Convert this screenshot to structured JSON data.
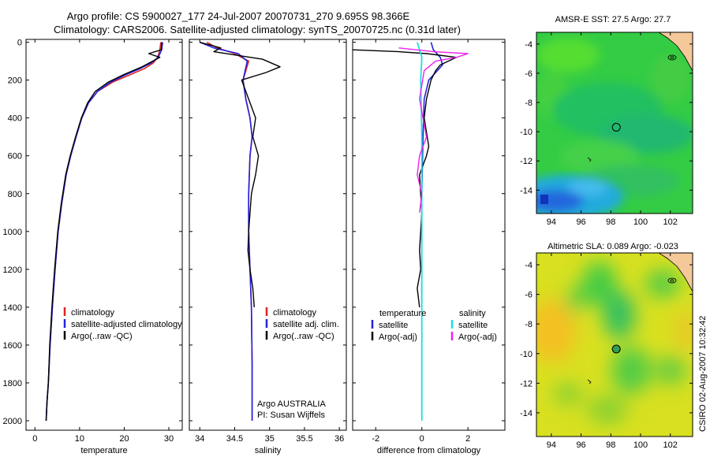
{
  "header": {
    "line1": "Argo profile: CS 5900027_177 24-Jul-2007 20070731_270 9.695S 98.366E",
    "line2": "Climatology: CARS2006. Satellite-adjusted climatology: synTS_20070725.nc (0.31d later)"
  },
  "stamp": "CSIRO 02-Aug-2007 10:32:42",
  "colors": {
    "climatology": "#dd2222",
    "satellite": "#2222dd",
    "argo": "#000000",
    "sat_salinity": "#22dddd",
    "argo_salinity": "#ee22ee"
  },
  "chart_data": [
    {
      "type": "line",
      "id": "temperature",
      "title": "",
      "xlabel": "temperature",
      "ylabel": "",
      "xlim": [
        -2,
        33
      ],
      "ylim": [
        2050,
        -15
      ],
      "xticks": [
        0,
        10,
        20,
        30
      ],
      "xticklabels": [
        "0",
        "10",
        "20",
        "30"
      ],
      "yticks": [
        0,
        200,
        400,
        600,
        800,
        1000,
        1200,
        1400,
        1600,
        1800,
        2000
      ],
      "yticklabels": [
        "0",
        "200",
        "400",
        "600",
        "800",
        "1000",
        "1200",
        "1400",
        "1600",
        "1800",
        "2000"
      ],
      "legend": {
        "labels": [
          "climatology",
          "satellite-adjusted climatology",
          "Argo(..raw -QC)"
        ],
        "colors": [
          "#dd2222",
          "#2222dd",
          "#000000"
        ]
      },
      "series": [
        {
          "name": "climatology",
          "color": "#dd2222",
          "width": 1.6,
          "x": [
            28.2,
            28.0,
            27.5,
            26.5,
            24.5,
            21.5,
            17.5,
            14.0,
            12.0,
            10.5,
            9.2,
            8.0,
            7.0,
            6.0,
            5.2,
            4.5,
            3.9,
            3.4,
            3.0,
            2.7,
            2.5
          ],
          "y": [
            0,
            40,
            80,
            110,
            140,
            170,
            210,
            260,
            320,
            400,
            500,
            600,
            700,
            850,
            1000,
            1200,
            1400,
            1600,
            1800,
            1900,
            2000
          ]
        },
        {
          "name": "satellite",
          "color": "#2222dd",
          "width": 1.6,
          "x": [
            28.6,
            28.4,
            27.6,
            26.0,
            23.5,
            20.5,
            17.0,
            14.0,
            12.0,
            10.5,
            9.2,
            8.0,
            7.0,
            6.0,
            5.2,
            4.5,
            3.9,
            3.4,
            3.0,
            2.7,
            2.5
          ],
          "y": [
            0,
            40,
            80,
            110,
            140,
            170,
            210,
            260,
            320,
            400,
            500,
            600,
            700,
            850,
            1000,
            1200,
            1400,
            1600,
            1800,
            1900,
            2000
          ]
        },
        {
          "name": "argo",
          "color": "#000000",
          "width": 1.4,
          "x": [
            28.4,
            28.3,
            25.5,
            28.0,
            24.0,
            20.0,
            16.5,
            13.5,
            11.8,
            10.4,
            9.1,
            7.9,
            6.9,
            5.9,
            5.1,
            4.4,
            3.8,
            3.3,
            3.0,
            2.7,
            2.5
          ],
          "y": [
            0,
            40,
            60,
            80,
            130,
            170,
            210,
            260,
            320,
            400,
            500,
            600,
            700,
            850,
            1000,
            1200,
            1400,
            1600,
            1800,
            1900,
            2000
          ]
        }
      ]
    },
    {
      "type": "line",
      "id": "salinity",
      "title": "",
      "xlabel": "salinity",
      "ylabel": "",
      "xlim": [
        33.85,
        36.1
      ],
      "ylim": [
        2050,
        -15
      ],
      "xticks": [
        34,
        34.5,
        35,
        35.5,
        36
      ],
      "xticklabels": [
        "34",
        "34.5",
        "35",
        "35.5",
        "36"
      ],
      "legend": {
        "labels": [
          "climatology",
          "satellite adj. clim.",
          "Argo(..raw -QC)"
        ],
        "colors": [
          "#dd2222",
          "#2222dd",
          "#000000"
        ]
      },
      "annotation": [
        "Argo AUSTRALIA",
        "PI: Susan Wijffels"
      ],
      "series": [
        {
          "name": "climatology",
          "color": "#dd2222",
          "width": 1.6,
          "x": [
            34.1,
            34.25,
            34.5,
            34.7,
            34.62,
            34.66,
            34.72,
            34.75,
            34.72,
            34.7,
            34.7,
            34.72,
            34.74,
            34.75,
            34.75
          ],
          "y": [
            0,
            30,
            60,
            100,
            200,
            300,
            400,
            500,
            600,
            800,
            1000,
            1200,
            1400,
            1700,
            2000
          ]
        },
        {
          "name": "satellite",
          "color": "#2222dd",
          "width": 1.6,
          "x": [
            34.0,
            34.2,
            34.55,
            34.68,
            34.62,
            34.66,
            34.72,
            34.75,
            34.72,
            34.7,
            34.7,
            34.72,
            34.74,
            34.75,
            34.75
          ],
          "y": [
            0,
            30,
            60,
            100,
            200,
            300,
            400,
            500,
            600,
            800,
            1000,
            1200,
            1400,
            1700,
            2000
          ]
        },
        {
          "name": "argo",
          "color": "#000000",
          "width": 1.4,
          "x": [
            34.0,
            34.3,
            34.2,
            34.9,
            35.15,
            34.95,
            34.6,
            34.7,
            34.8,
            34.76,
            34.84,
            34.8,
            34.74,
            34.7,
            34.69,
            34.72,
            34.76,
            34.78
          ],
          "y": [
            0,
            30,
            50,
            90,
            130,
            160,
            200,
            300,
            400,
            500,
            600,
            700,
            800,
            1000,
            1100,
            1200,
            1300,
            1400
          ]
        }
      ]
    },
    {
      "type": "line",
      "id": "difference",
      "title": "",
      "xlabel": "difference from climatology",
      "ylabel": "",
      "xlim": [
        -3.0,
        3.6
      ],
      "ylim": [
        2050,
        -15
      ],
      "xticks": [
        -2,
        0,
        2
      ],
      "xticklabels": [
        "-2",
        "0",
        "2"
      ],
      "legend": {
        "temperature_title": "temperature",
        "salinity_title": "salinity",
        "labels": [
          "satellite",
          "Argo(-adj)",
          "satellite",
          "Argo(-adj)"
        ],
        "colors": [
          "#2222dd",
          "#000000",
          "#22dddd",
          "#ee22ee"
        ]
      },
      "series": [
        {
          "name": "temperature satellite",
          "color": "#2222dd",
          "width": 1.6,
          "x": [
            0.4,
            0.5,
            0.8,
            0.9,
            0.6,
            0.3,
            0.1,
            0.05,
            0.0,
            0.0,
            0.0
          ],
          "y": [
            0,
            40,
            80,
            120,
            160,
            200,
            300,
            500,
            800,
            1200,
            1400
          ]
        },
        {
          "name": "temperature Argo(-adj)",
          "color": "#000000",
          "width": 1.4,
          "x": [
            -3.0,
            -1.0,
            0.2,
            1.5,
            0.8,
            0.6,
            0.4,
            0.2,
            0.1,
            0.3,
            0.2,
            -0.1,
            0.0,
            -0.1,
            -0.05,
            -0.2,
            -0.1
          ],
          "y": [
            40,
            50,
            60,
            80,
            120,
            150,
            200,
            300,
            400,
            550,
            600,
            700,
            900,
            1100,
            1200,
            1300,
            1400
          ]
        },
        {
          "name": "salinity satellite",
          "color": "#22dddd",
          "width": 1.8,
          "x": [
            -0.2,
            0.0,
            -0.05,
            0.0,
            0.0,
            0.0,
            0.0
          ],
          "y": [
            0,
            80,
            200,
            500,
            1000,
            1500,
            2000
          ]
        },
        {
          "name": "salinity Argo(-adj)",
          "color": "#ee22ee",
          "width": 1.4,
          "x": [
            -1.0,
            0.5,
            2.0,
            1.5,
            0.6,
            0.1,
            -0.1,
            0.2,
            -0.1,
            -0.2,
            0.0,
            -0.1
          ],
          "y": [
            30,
            50,
            60,
            80,
            100,
            150,
            300,
            500,
            600,
            700,
            800,
            900
          ]
        }
      ]
    },
    {
      "type": "heatmap",
      "id": "sst_map",
      "title": "AMSR-E SST: 27.5 Argo: 27.7",
      "xlabel": "",
      "ylabel": "",
      "xlim": [
        93.0,
        103.5
      ],
      "ylim": [
        -15.6,
        -3.2
      ],
      "xticks": [
        94,
        96,
        98,
        100,
        102
      ],
      "xticklabels": [
        "94",
        "96",
        "98",
        "100",
        "102"
      ],
      "yticks": [
        -4,
        -6,
        -8,
        -10,
        -12,
        -14
      ],
      "yticklabels": [
        "-4",
        "-6",
        "-8",
        "-10",
        "-12",
        "-14"
      ],
      "marker": {
        "lon": 98.366,
        "lat": -9.695
      }
    },
    {
      "type": "heatmap",
      "id": "sla_map",
      "title": "Altimetric SLA: 0.089 Argo: -0.023",
      "xlabel": "",
      "ylabel": "",
      "xlim": [
        93.0,
        103.5
      ],
      "ylim": [
        -15.6,
        -3.2
      ],
      "xticks": [
        94,
        96,
        98,
        100,
        102
      ],
      "xticklabels": [
        "94",
        "96",
        "98",
        "100",
        "102"
      ],
      "yticks": [
        -4,
        -6,
        -8,
        -10,
        -12,
        -14
      ],
      "yticklabels": [
        "-4",
        "-6",
        "-8",
        "-10",
        "-12",
        "-14"
      ],
      "marker": {
        "lon": 98.366,
        "lat": -9.695
      }
    }
  ]
}
